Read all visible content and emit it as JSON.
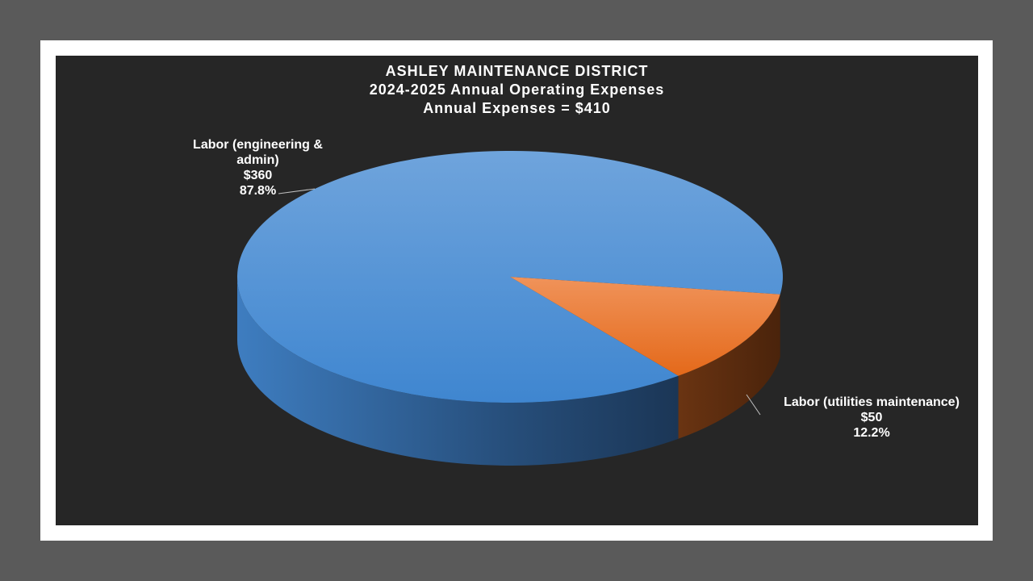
{
  "chart_data": {
    "type": "pie",
    "title": "ASHLEY MAINTENANCE DISTRICT",
    "subtitle": "2024-2025 Annual Operating Expenses",
    "subtitle2": "Annual Expenses = $410",
    "slices": [
      {
        "label_line1": "Labor (engineering &",
        "label_line2": "admin)",
        "value": 360,
        "value_label": "$360",
        "percent_label": "87.8%",
        "color": "#4a8fd4"
      },
      {
        "label_line1": "Labor (utilities maintenance)",
        "value": 50,
        "value_label": "$50",
        "percent_label": "12.2%",
        "color": "#ed7d31"
      }
    ],
    "legend": "none",
    "style": "3d"
  }
}
